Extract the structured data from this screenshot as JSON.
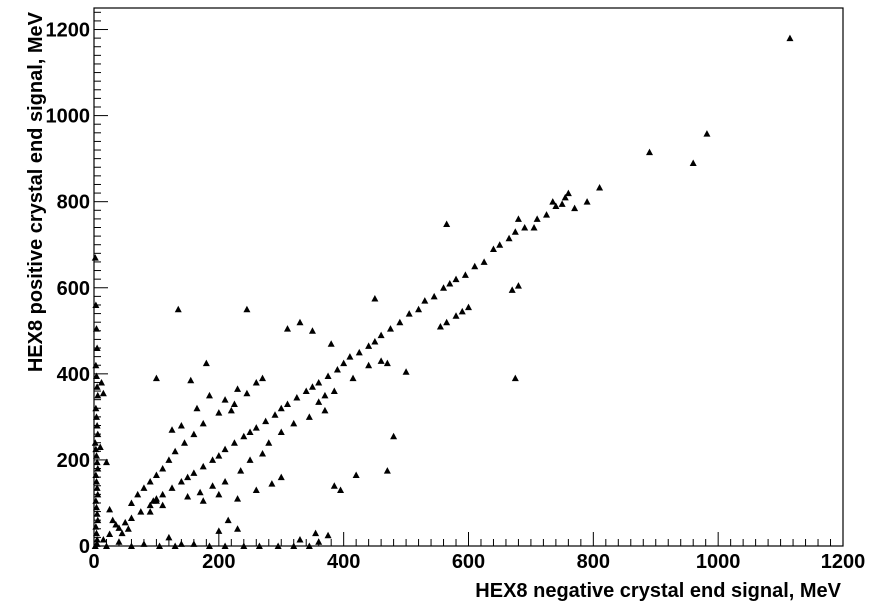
{
  "chart_data": {
    "type": "scatter",
    "title": "",
    "xlabel": "HEX8 negative crystal end signal, MeV",
    "ylabel": "HEX8 positive crystal end signal, MeV",
    "xlim": [
      0,
      1200
    ],
    "ylim": [
      0,
      1250
    ],
    "x_ticks": [
      0,
      200,
      400,
      600,
      800,
      1000,
      1200
    ],
    "y_ticks": [
      0,
      200,
      400,
      600,
      800,
      1000,
      1200
    ],
    "x_tick_labels": [
      "0",
      "200",
      "400",
      "600",
      "800",
      "1000",
      "1200"
    ],
    "y_tick_labels": [
      "0",
      "200",
      "400",
      "600",
      "800",
      "1000",
      "1200"
    ],
    "marker": "filled-triangle",
    "marker_color": "#000000",
    "grid": false,
    "legend": "none",
    "series": [
      {
        "points": [
          [
            1115,
            1180
          ],
          [
            982,
            958
          ],
          [
            960,
            890
          ],
          [
            890,
            915
          ],
          [
            810,
            833
          ],
          [
            790,
            800
          ],
          [
            770,
            785
          ],
          [
            760,
            820
          ],
          [
            755,
            810
          ],
          [
            750,
            795
          ],
          [
            740,
            790
          ],
          [
            725,
            770
          ],
          [
            710,
            760
          ],
          [
            705,
            740
          ],
          [
            690,
            740
          ],
          [
            680,
            760
          ],
          [
            675,
            730
          ],
          [
            665,
            715
          ],
          [
            650,
            700
          ],
          [
            640,
            690
          ],
          [
            625,
            660
          ],
          [
            610,
            650
          ],
          [
            595,
            630
          ],
          [
            580,
            620
          ],
          [
            570,
            610
          ],
          [
            560,
            600
          ],
          [
            545,
            580
          ],
          [
            530,
            570
          ],
          [
            520,
            550
          ],
          [
            505,
            540
          ],
          [
            490,
            520
          ],
          [
            475,
            505
          ],
          [
            460,
            490
          ],
          [
            450,
            475
          ],
          [
            440,
            465
          ],
          [
            425,
            450
          ],
          [
            410,
            440
          ],
          [
            400,
            425
          ],
          [
            390,
            410
          ],
          [
            375,
            395
          ],
          [
            360,
            380
          ],
          [
            350,
            370
          ],
          [
            340,
            360
          ],
          [
            325,
            345
          ],
          [
            310,
            330
          ],
          [
            300,
            320
          ],
          [
            290,
            305
          ],
          [
            275,
            290
          ],
          [
            260,
            275
          ],
          [
            250,
            265
          ],
          [
            240,
            255
          ],
          [
            225,
            240
          ],
          [
            210,
            225
          ],
          [
            200,
            210
          ],
          [
            190,
            200
          ],
          [
            175,
            185
          ],
          [
            160,
            170
          ],
          [
            150,
            160
          ],
          [
            140,
            150
          ],
          [
            125,
            135
          ],
          [
            110,
            120
          ],
          [
            100,
            105
          ],
          [
            90,
            95
          ],
          [
            75,
            80
          ],
          [
            60,
            65
          ],
          [
            50,
            55
          ],
          [
            40,
            42
          ],
          [
            25,
            28
          ],
          [
            15,
            15
          ],
          [
            5,
            5
          ],
          [
            565,
            748
          ],
          [
            735,
            800
          ],
          [
            670,
            595
          ],
          [
            680,
            605
          ],
          [
            675,
            390
          ],
          [
            590,
            545
          ],
          [
            600,
            555
          ],
          [
            555,
            510
          ],
          [
            565,
            520
          ],
          [
            580,
            535
          ],
          [
            450,
            575
          ],
          [
            440,
            420
          ],
          [
            460,
            430
          ],
          [
            470,
            425
          ],
          [
            500,
            405
          ],
          [
            480,
            255
          ],
          [
            470,
            175
          ],
          [
            420,
            165
          ],
          [
            395,
            130
          ],
          [
            385,
            140
          ],
          [
            330,
            520
          ],
          [
            310,
            505
          ],
          [
            350,
            500
          ],
          [
            380,
            470
          ],
          [
            360,
            335
          ],
          [
            370,
            350
          ],
          [
            385,
            360
          ],
          [
            415,
            390
          ],
          [
            245,
            550
          ],
          [
            135,
            550
          ],
          [
            100,
            390
          ],
          [
            180,
            425
          ],
          [
            155,
            385
          ],
          [
            260,
            380
          ],
          [
            270,
            390
          ],
          [
            230,
            365
          ],
          [
            245,
            355
          ],
          [
            225,
            330
          ],
          [
            200,
            310
          ],
          [
            175,
            285
          ],
          [
            160,
            260
          ],
          [
            145,
            240
          ],
          [
            130,
            220
          ],
          [
            120,
            200
          ],
          [
            110,
            180
          ],
          [
            100,
            165
          ],
          [
            90,
            150
          ],
          [
            80,
            135
          ],
          [
            70,
            120
          ],
          [
            60,
            100
          ],
          [
            150,
            115
          ],
          [
            175,
            105
          ],
          [
            200,
            120
          ],
          [
            230,
            110
          ],
          [
            260,
            130
          ],
          [
            285,
            145
          ],
          [
            300,
            160
          ],
          [
            200,
            35
          ],
          [
            230,
            40
          ],
          [
            215,
            60
          ],
          [
            160,
            5
          ],
          [
            185,
            0
          ],
          [
            210,
            0
          ],
          [
            240,
            0
          ],
          [
            265,
            0
          ],
          [
            295,
            0
          ],
          [
            320,
            0
          ],
          [
            345,
            0
          ],
          [
            355,
            30
          ],
          [
            360,
            10
          ],
          [
            375,
            25
          ],
          [
            330,
            15
          ],
          [
            105,
            0
          ],
          [
            140,
            5
          ],
          [
            120,
            20
          ],
          [
            130,
            0
          ],
          [
            90,
            80
          ],
          [
            95,
            105
          ],
          [
            100,
            110
          ],
          [
            110,
            95
          ],
          [
            2,
            670
          ],
          [
            3,
            560
          ],
          [
            4,
            505
          ],
          [
            5,
            460
          ],
          [
            3,
            420
          ],
          [
            4,
            395
          ],
          [
            5,
            370
          ],
          [
            6,
            350
          ],
          [
            3,
            320
          ],
          [
            4,
            300
          ],
          [
            5,
            280
          ],
          [
            6,
            260
          ],
          [
            2,
            240
          ],
          [
            3,
            225
          ],
          [
            4,
            210
          ],
          [
            5,
            195
          ],
          [
            6,
            180
          ],
          [
            3,
            165
          ],
          [
            4,
            150
          ],
          [
            5,
            135
          ],
          [
            6,
            120
          ],
          [
            3,
            105
          ],
          [
            4,
            90
          ],
          [
            5,
            75
          ],
          [
            6,
            60
          ],
          [
            3,
            45
          ],
          [
            4,
            30
          ],
          [
            5,
            15
          ],
          [
            2,
            0
          ],
          [
            10,
            230
          ],
          [
            12,
            380
          ],
          [
            15,
            355
          ],
          [
            20,
            195
          ],
          [
            25,
            85
          ],
          [
            30,
            60
          ],
          [
            35,
            50
          ],
          [
            20,
            0
          ],
          [
            40,
            10
          ],
          [
            60,
            0
          ],
          [
            80,
            5
          ],
          [
            45,
            30
          ],
          [
            55,
            40
          ],
          [
            125,
            270
          ],
          [
            140,
            280
          ],
          [
            165,
            320
          ],
          [
            185,
            350
          ],
          [
            210,
            340
          ],
          [
            220,
            315
          ],
          [
            280,
            240
          ],
          [
            300,
            265
          ],
          [
            320,
            285
          ],
          [
            345,
            300
          ],
          [
            370,
            315
          ],
          [
            250,
            200
          ],
          [
            270,
            215
          ],
          [
            235,
            175
          ],
          [
            210,
            150
          ],
          [
            190,
            140
          ],
          [
            170,
            125
          ]
        ]
      }
    ]
  }
}
